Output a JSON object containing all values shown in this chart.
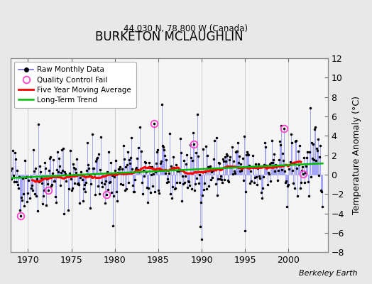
{
  "title": "BURKETON MCLAUGHLIN",
  "subtitle": "44.030 N, 78.800 W (Canada)",
  "ylabel": "Temperature Anomaly (°C)",
  "attribution": "Berkeley Earth",
  "ylim": [
    -8,
    12
  ],
  "xlim": [
    1968.0,
    2004.5
  ],
  "yticks": [
    -8,
    -6,
    -4,
    -2,
    0,
    2,
    4,
    6,
    8,
    10,
    12
  ],
  "xticks": [
    1970,
    1975,
    1980,
    1985,
    1990,
    1995,
    2000
  ],
  "fig_bg_color": "#e8e8e8",
  "plot_bg_color": "#f5f5f5",
  "raw_line_color": "#6666ff",
  "raw_dot_color": "#000000",
  "ma_color": "#ff0000",
  "trend_color": "#00bb00",
  "qc_color": "#ff44cc",
  "start_year": 1968.0,
  "n_months": 432,
  "seed": 42
}
